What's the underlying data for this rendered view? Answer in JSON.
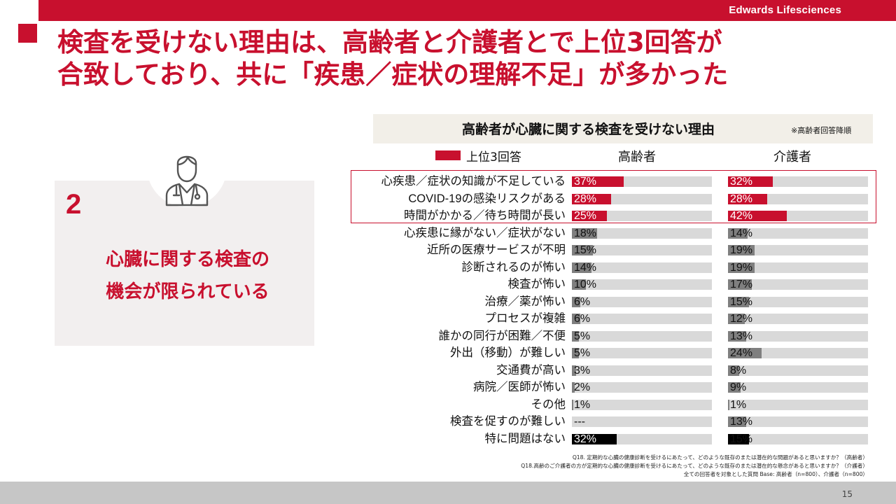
{
  "brand": "Edwards Lifesciences",
  "title_lines": [
    "検査を受けない理由は、高齢者と介護者とで上位3回答が",
    "合致しており、共に「疾患／症状の理解不足」が多かった"
  ],
  "left_panel": {
    "number": "2",
    "caption_lines": [
      "心臓に関する検査の",
      "機会が限られている"
    ]
  },
  "chart_header": {
    "title": "高齢者が心臓に関する検査を受けない理由",
    "note": "※高齢者回答降順"
  },
  "legend": {
    "label": "上位3回答"
  },
  "colors": {
    "accent": "#c8102e",
    "track": "#d9d9d9",
    "bar_gray": "#7f7f7f",
    "bar_black": "#000000"
  },
  "chart_data": {
    "type": "bar",
    "orientation": "horizontal",
    "xlim": [
      0,
      100
    ],
    "categories": [
      "心疾患／症状の知識が不足している",
      "COVID-19の感染リスクがある",
      "時間がかかる／待ち時間が長い",
      "心疾患に縁がない／症状がない",
      "近所の医療サービスが不明",
      "診断されるのが怖い",
      "検査が怖い",
      "治療／薬が怖い",
      "プロセスが複雑",
      "誰かの同行が困難／不便",
      "外出（移動）が難しい",
      "交通費が高い",
      "病院／医師が怖い",
      "その他",
      "検査を促すのが難しい",
      "特に問題はない"
    ],
    "series": [
      {
        "name": "高齢者",
        "values": [
          37,
          28,
          25,
          18,
          15,
          14,
          10,
          6,
          6,
          5,
          5,
          3,
          2,
          1,
          null,
          32
        ],
        "labels": [
          "37%",
          "28%",
          "25%",
          "18%",
          "15%",
          "14%",
          "10%",
          "6%",
          "6%",
          "5%",
          "5%",
          "3%",
          "2%",
          "1%",
          "---",
          "32%"
        ]
      },
      {
        "name": "介護者",
        "values": [
          32,
          28,
          42,
          14,
          19,
          19,
          17,
          15,
          12,
          13,
          24,
          8,
          9,
          1,
          13,
          15
        ],
        "labels": [
          "32%",
          "28%",
          "42%",
          "14%",
          "19%",
          "19%",
          "17%",
          "15%",
          "12%",
          "13%",
          "24%",
          "8%",
          "9%",
          "1%",
          "13%",
          "15%"
        ]
      }
    ],
    "top3_rows": [
      0,
      1,
      2
    ],
    "none_row": 15
  },
  "footnotes": [
    "Q18. 定期的な心臓の健康診断を受けるにあたって、どのような既存のまたは潜在的な問題があると思いますか？（高齢者）",
    "Q18.高齢のご介護者の方が定期的な心臓の健康診断を受けるにあたって、どのような既存のまたは潜在的な懸念があると思いますか？（介護者）",
    "全ての回答者を対象とした質問 Base: 高齢者（n=800）、介護者（n=800）"
  ],
  "page_number": "15"
}
